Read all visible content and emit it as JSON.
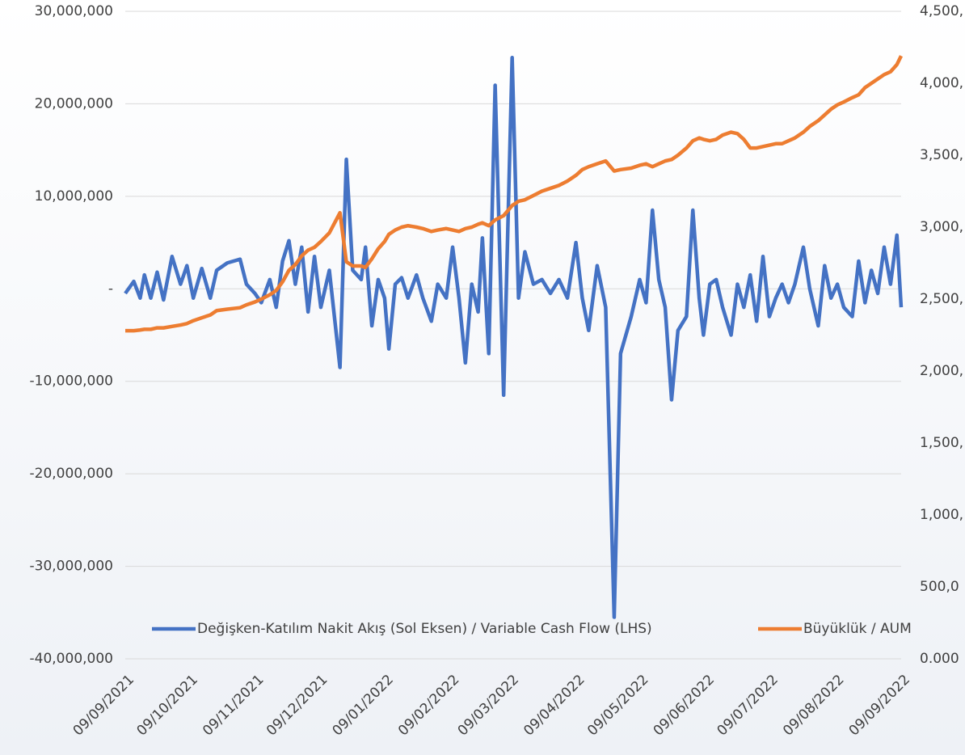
{
  "chart_data": {
    "type": "line",
    "x": [
      "09/09/2021",
      "13/09/2021",
      "16/09/2021",
      "18/09/2021",
      "21/09/2021",
      "24/09/2021",
      "27/09/2021",
      "01/10/2021",
      "05/10/2021",
      "08/10/2021",
      "11/10/2021",
      "15/10/2021",
      "19/10/2021",
      "22/10/2021",
      "27/10/2021",
      "02/11/2021",
      "05/11/2021",
      "09/11/2021",
      "12/11/2021",
      "16/11/2021",
      "19/11/2021",
      "22/11/2021",
      "25/11/2021",
      "28/11/2021",
      "01/12/2021",
      "04/12/2021",
      "07/12/2021",
      "10/12/2021",
      "14/12/2021",
      "19/12/2021",
      "22/12/2021",
      "25/12/2021",
      "29/12/2021",
      "31/12/2021",
      "03/01/2022",
      "06/01/2022",
      "09/01/2022",
      "11/01/2022",
      "14/01/2022",
      "17/01/2022",
      "20/01/2022",
      "24/01/2022",
      "27/01/2022",
      "31/01/2022",
      "03/02/2022",
      "07/02/2022",
      "10/02/2022",
      "13/02/2022",
      "16/02/2022",
      "19/02/2022",
      "22/02/2022",
      "24/02/2022",
      "27/02/2022",
      "02/03/2022",
      "06/03/2022",
      "10/03/2022",
      "13/03/2022",
      "16/03/2022",
      "20/03/2022",
      "24/03/2022",
      "28/03/2022",
      "01/04/2022",
      "05/04/2022",
      "09/04/2022",
      "12/04/2022",
      "15/04/2022",
      "19/04/2022",
      "23/04/2022",
      "27/04/2022",
      "30/04/2022",
      "05/05/2022",
      "09/05/2022",
      "12/05/2022",
      "15/05/2022",
      "18/05/2022",
      "21/05/2022",
      "24/05/2022",
      "27/05/2022",
      "31/05/2022",
      "03/06/2022",
      "06/06/2022",
      "08/06/2022",
      "11/06/2022",
      "14/06/2022",
      "17/06/2022",
      "21/06/2022",
      "24/06/2022",
      "27/06/2022",
      "30/06/2022",
      "03/07/2022",
      "06/07/2022",
      "09/07/2022",
      "12/07/2022",
      "15/07/2022",
      "18/07/2022",
      "21/07/2022",
      "25/07/2022",
      "28/07/2022",
      "01/08/2022",
      "04/08/2022",
      "07/08/2022",
      "10/08/2022",
      "13/08/2022",
      "17/08/2022",
      "20/08/2022",
      "23/08/2022",
      "26/08/2022",
      "29/08/2022",
      "01/09/2022",
      "04/09/2022",
      "07/09/2022",
      "09/09/2022"
    ],
    "xlim": [
      "09/09/2021",
      "09/09/2022"
    ],
    "xticks": [
      "09/09/2021",
      "09/10/2021",
      "09/11/2021",
      "09/12/2021",
      "09/01/2022",
      "09/02/2022",
      "09/03/2022",
      "09/04/2022",
      "09/05/2022",
      "09/06/2022",
      "09/07/2022",
      "09/08/2022",
      "09/09/2022"
    ],
    "ylim": [
      -40000000,
      30000000
    ],
    "yticks": [
      {
        "value": -40000000,
        "label": "-40,000,000"
      },
      {
        "value": -30000000,
        "label": "-30,000,000"
      },
      {
        "value": -20000000,
        "label": "-20,000,000"
      },
      {
        "value": -10000000,
        "label": "-10,000,000"
      },
      {
        "value": 0,
        "label": "-"
      },
      {
        "value": 10000000,
        "label": "10,000,000"
      },
      {
        "value": 20000000,
        "label": "20,000,000"
      },
      {
        "value": 30000000,
        "label": "30,000,000"
      }
    ],
    "y2lim": [
      0,
      4500000000
    ],
    "y2ticks": [
      {
        "value": 0,
        "label": "0.000"
      },
      {
        "value": 500000000,
        "label": "500,0"
      },
      {
        "value": 1000000000,
        "label": "1,000,"
      },
      {
        "value": 1500000000,
        "label": "1,500,"
      },
      {
        "value": 2000000000,
        "label": "2,000,"
      },
      {
        "value": 2500000000,
        "label": "2,500,"
      },
      {
        "value": 3000000000,
        "label": "3,000,"
      },
      {
        "value": 3500000000,
        "label": "3,500,"
      },
      {
        "value": 4000000000,
        "label": "4,000,"
      },
      {
        "value": 4500000000,
        "label": "4,500,"
      }
    ],
    "grid": true,
    "legend": "bottom",
    "series": [
      {
        "name": "Değişken-Katılım Nakit Akış (Sol Eksen) / Variable Cash Flow (LHS)",
        "color": "#4472c4",
        "values": [
          -500000,
          800000,
          -1000000,
          1500000,
          -1000000,
          1800000,
          -1200000,
          3500000,
          500000,
          2500000,
          -1000000,
          2200000,
          -1000000,
          2000000,
          2800000,
          3200000,
          500000,
          -500000,
          -1500000,
          1000000,
          -2000000,
          3000000,
          5200000,
          500000,
          4500000,
          -2500000,
          3500000,
          -2000000,
          2000000,
          -8500000,
          14000000,
          2000000,
          1000000,
          4500000,
          -4000000,
          1000000,
          -1000000,
          -6500000,
          500000,
          1200000,
          -1000000,
          1500000,
          -1000000,
          -3500000,
          500000,
          -1000000,
          4500000,
          -1000000,
          -8000000,
          500000,
          -2500000,
          5500000,
          -7000000,
          22000000,
          -11500000,
          25000000,
          -1000000,
          4000000,
          500000,
          1000000,
          -500000,
          1000000,
          -1000000,
          5000000,
          -1000000,
          -4500000,
          2500000,
          -2000000,
          -35500000,
          -7000000,
          -3000000,
          1000000,
          -1500000,
          8500000,
          1000000,
          -2000000,
          -12000000,
          -4500000,
          -3000000,
          8500000,
          -1000000,
          -5000000,
          500000,
          1000000,
          -2000000,
          -5000000,
          500000,
          -2000000,
          1500000,
          -3500000,
          3500000,
          -3000000,
          -1000000,
          500000,
          -1500000,
          500000,
          4500000,
          0,
          -4000000,
          2500000,
          -1000000,
          500000,
          -2000000,
          -3000000,
          3000000,
          -1500000,
          2000000,
          -500000,
          4500000,
          500000,
          5800000,
          -2000000
        ]
      },
      {
        "name": "Büyüklük / AUM",
        "color": "#ed7d31",
        "axis": "y2",
        "values": [
          2280000000,
          2280000000,
          2285000000,
          2290000000,
          2290000000,
          2300000000,
          2300000000,
          2310000000,
          2320000000,
          2330000000,
          2350000000,
          2370000000,
          2390000000,
          2420000000,
          2430000000,
          2440000000,
          2460000000,
          2480000000,
          2500000000,
          2530000000,
          2560000000,
          2620000000,
          2700000000,
          2740000000,
          2800000000,
          2840000000,
          2860000000,
          2900000000,
          2960000000,
          3100000000,
          2760000000,
          2730000000,
          2730000000,
          2720000000,
          2780000000,
          2850000000,
          2900000000,
          2950000000,
          2980000000,
          3000000000,
          3010000000,
          3000000000,
          2990000000,
          2970000000,
          2980000000,
          2990000000,
          2980000000,
          2970000000,
          2990000000,
          3000000000,
          3020000000,
          3030000000,
          3010000000,
          3050000000,
          3080000000,
          3150000000,
          3180000000,
          3190000000,
          3220000000,
          3250000000,
          3270000000,
          3290000000,
          3320000000,
          3360000000,
          3400000000,
          3420000000,
          3440000000,
          3460000000,
          3390000000,
          3400000000,
          3410000000,
          3430000000,
          3440000000,
          3420000000,
          3440000000,
          3460000000,
          3470000000,
          3500000000,
          3550000000,
          3600000000,
          3620000000,
          3610000000,
          3600000000,
          3610000000,
          3640000000,
          3660000000,
          3650000000,
          3610000000,
          3550000000,
          3550000000,
          3560000000,
          3570000000,
          3580000000,
          3580000000,
          3600000000,
          3620000000,
          3660000000,
          3700000000,
          3740000000,
          3780000000,
          3820000000,
          3850000000,
          3870000000,
          3900000000,
          3920000000,
          3970000000,
          4000000000,
          4030000000,
          4060000000,
          4080000000,
          4130000000,
          4190000000
        ]
      }
    ]
  }
}
